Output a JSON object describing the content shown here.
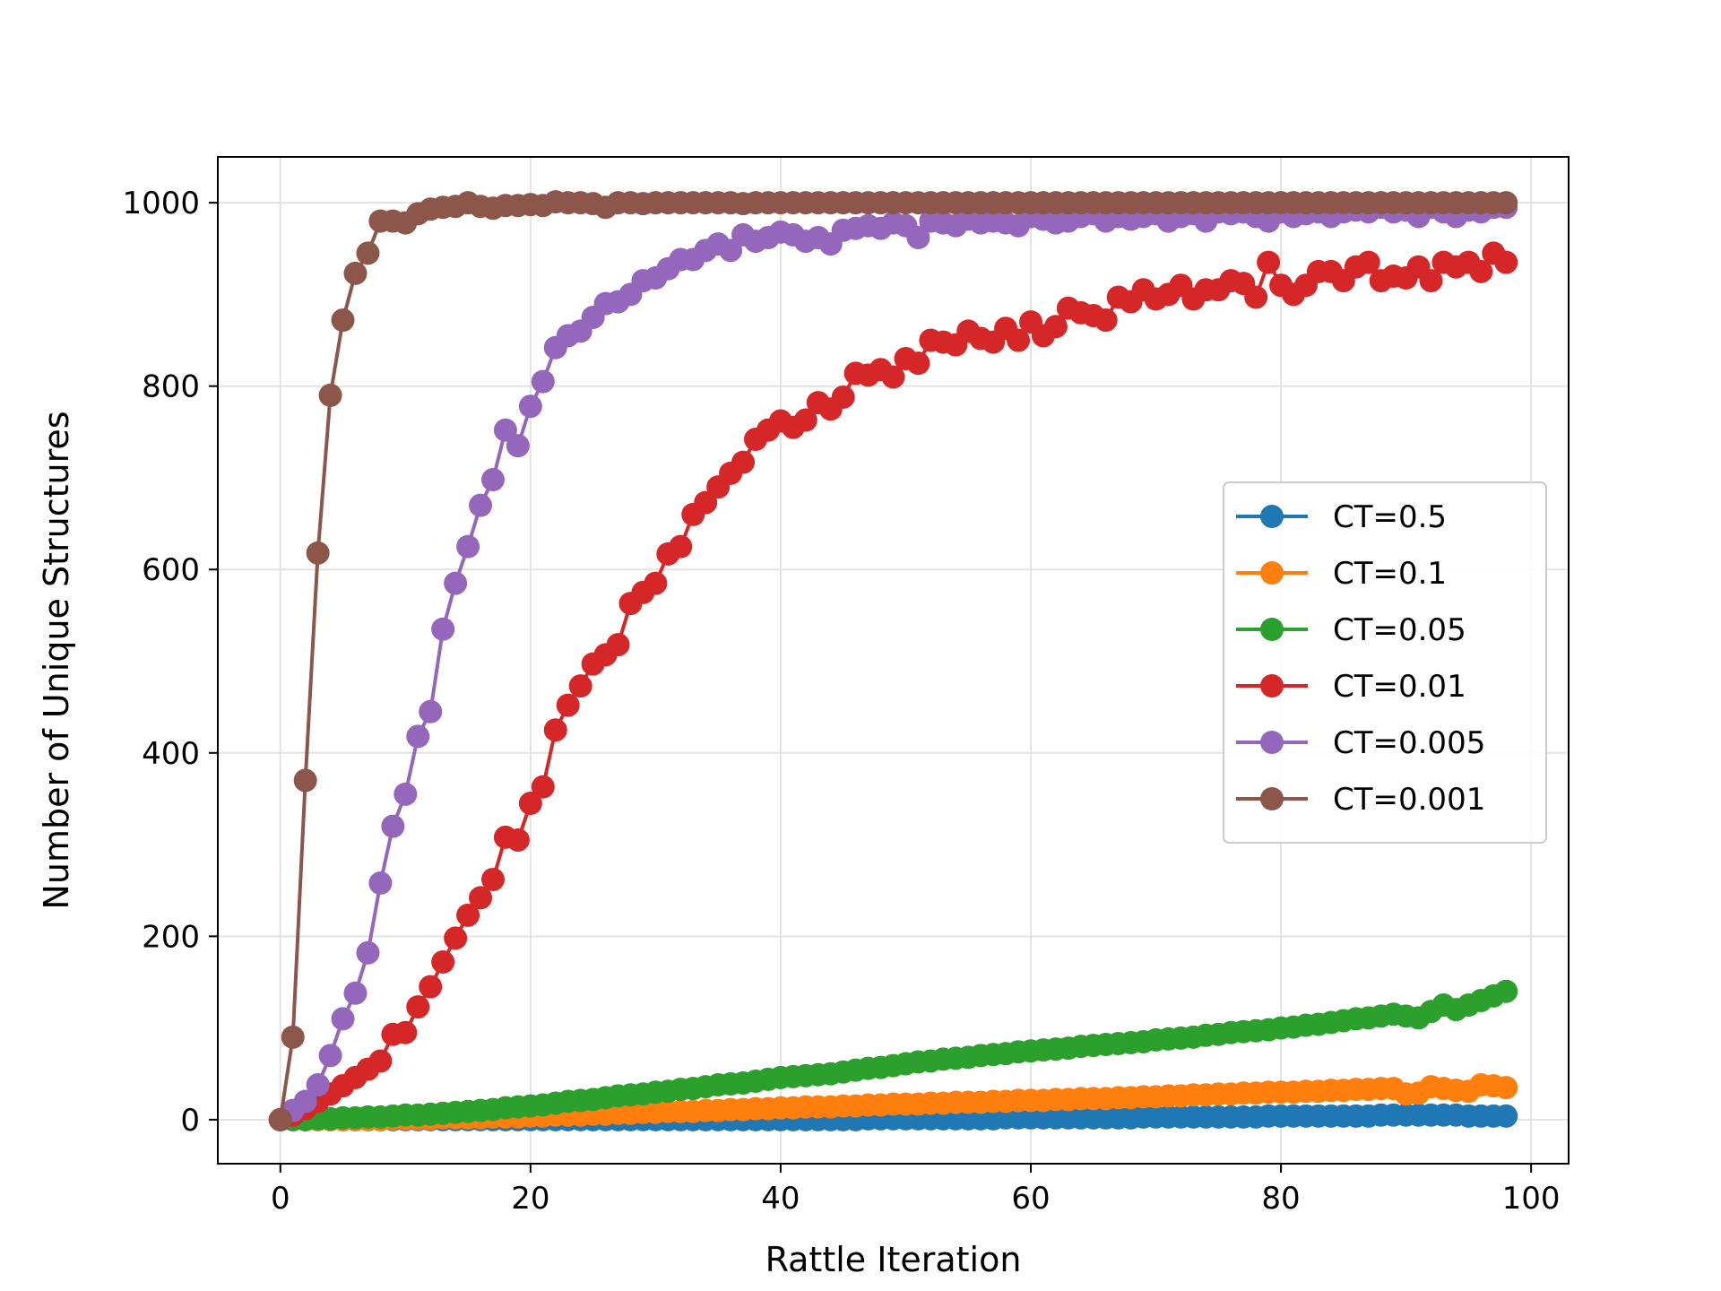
{
  "chart_data": {
    "type": "line",
    "title": "",
    "xlabel": "Rattle Iteration",
    "ylabel": "Number of Unique Structures",
    "xlim": [
      -5,
      103
    ],
    "ylim": [
      -48,
      1050
    ],
    "xticks": [
      0,
      20,
      40,
      60,
      80,
      100
    ],
    "yticks": [
      0,
      200,
      400,
      600,
      800,
      1000
    ],
    "grid": true,
    "legend_position": "center-right",
    "x": [
      0,
      1,
      2,
      3,
      4,
      5,
      6,
      7,
      8,
      9,
      10,
      11,
      12,
      13,
      14,
      15,
      16,
      17,
      18,
      19,
      20,
      21,
      22,
      23,
      24,
      25,
      26,
      27,
      28,
      29,
      30,
      31,
      32,
      33,
      34,
      35,
      36,
      37,
      38,
      39,
      40,
      41,
      42,
      43,
      44,
      45,
      46,
      47,
      48,
      49,
      50,
      51,
      52,
      53,
      54,
      55,
      56,
      57,
      58,
      59,
      60,
      61,
      62,
      63,
      64,
      65,
      66,
      67,
      68,
      69,
      70,
      71,
      72,
      73,
      74,
      75,
      76,
      77,
      78,
      79,
      80,
      81,
      82,
      83,
      84,
      85,
      86,
      87,
      88,
      89,
      90,
      91,
      92,
      93,
      94,
      95,
      96,
      97,
      98
    ],
    "series": [
      {
        "name": "CT=0.5",
        "color": "#1f77b4",
        "values": [
          0,
          0,
          0,
          0,
          0,
          0,
          0,
          0,
          0,
          0,
          0,
          0,
          0,
          0,
          0,
          0,
          0,
          0,
          0,
          0,
          0,
          0,
          0,
          0,
          0,
          0,
          0,
          0,
          0,
          0,
          0,
          0,
          0,
          0,
          0,
          0,
          0,
          0,
          0,
          0,
          0,
          0,
          0,
          0,
          0,
          0,
          0,
          1,
          1,
          1,
          1,
          1,
          1,
          1,
          1,
          1,
          1,
          1,
          2,
          2,
          2,
          2,
          2,
          2,
          2,
          2,
          2,
          2,
          2,
          3,
          3,
          3,
          3,
          3,
          3,
          3,
          3,
          3,
          3,
          4,
          4,
          4,
          4,
          4,
          4,
          4,
          4,
          4,
          5,
          5,
          5,
          5,
          5,
          5,
          5,
          4,
          4,
          4,
          4
        ]
      },
      {
        "name": "CT=0.1",
        "color": "#ff7f0e",
        "values": [
          0,
          0,
          0,
          0,
          0,
          0,
          0,
          0,
          0,
          1,
          1,
          1,
          1,
          2,
          2,
          2,
          2,
          3,
          3,
          3,
          4,
          4,
          5,
          5,
          5,
          6,
          6,
          7,
          7,
          8,
          8,
          9,
          9,
          9,
          10,
          10,
          11,
          11,
          12,
          12,
          13,
          13,
          14,
          14,
          14,
          15,
          15,
          16,
          16,
          17,
          17,
          17,
          18,
          18,
          19,
          19,
          19,
          20,
          20,
          21,
          21,
          21,
          22,
          22,
          23,
          23,
          23,
          24,
          24,
          25,
          25,
          26,
          26,
          27,
          27,
          28,
          28,
          29,
          29,
          30,
          30,
          30,
          31,
          31,
          32,
          32,
          33,
          33,
          34,
          34,
          28,
          29,
          36,
          34,
          32,
          31,
          38,
          37,
          35
        ]
      },
      {
        "name": "CT=0.05",
        "color": "#2ca02c",
        "values": [
          0,
          0,
          0,
          1,
          1,
          2,
          2,
          3,
          3,
          4,
          5,
          5,
          6,
          7,
          8,
          9,
          10,
          11,
          13,
          14,
          15,
          16,
          18,
          20,
          21,
          22,
          24,
          26,
          27,
          28,
          30,
          31,
          33,
          34,
          36,
          38,
          39,
          40,
          42,
          44,
          46,
          47,
          48,
          49,
          50,
          52,
          54,
          56,
          57,
          59,
          61,
          63,
          64,
          66,
          67,
          68,
          70,
          71,
          72,
          74,
          75,
          76,
          77,
          78,
          80,
          81,
          82,
          83,
          84,
          85,
          87,
          88,
          89,
          90,
          92,
          93,
          95,
          96,
          97,
          98,
          100,
          101,
          103,
          104,
          106,
          108,
          110,
          111,
          113,
          115,
          113,
          111,
          118,
          125,
          120,
          125,
          130,
          135,
          140
        ]
      },
      {
        "name": "CT=0.01",
        "color": "#d62728",
        "values": [
          0,
          5,
          12,
          20,
          28,
          37,
          46,
          55,
          64,
          93,
          95,
          123,
          145,
          172,
          198,
          223,
          242,
          262,
          308,
          305,
          345,
          363,
          425,
          452,
          473,
          497,
          507,
          518,
          563,
          575,
          585,
          617,
          625,
          660,
          673,
          690,
          705,
          717,
          742,
          752,
          762,
          755,
          763,
          782,
          775,
          788,
          814,
          812,
          818,
          810,
          830,
          825,
          850,
          848,
          845,
          860,
          852,
          848,
          863,
          850,
          870,
          855,
          865,
          885,
          880,
          877,
          872,
          897,
          892,
          905,
          895,
          900,
          910,
          895,
          905,
          905,
          915,
          912,
          897,
          935,
          910,
          900,
          910,
          925,
          925,
          915,
          930,
          935,
          915,
          920,
          918,
          930,
          915,
          935,
          930,
          935,
          925,
          945,
          935
        ]
      },
      {
        "name": "CT=0.005",
        "color": "#9467bd",
        "values": [
          0,
          10,
          20,
          38,
          70,
          110,
          138,
          182,
          258,
          320,
          355,
          418,
          445,
          535,
          585,
          625,
          670,
          698,
          752,
          735,
          778,
          805,
          842,
          855,
          860,
          875,
          890,
          892,
          900,
          915,
          918,
          928,
          938,
          938,
          948,
          955,
          948,
          965,
          958,
          962,
          968,
          965,
          958,
          962,
          955,
          970,
          972,
          975,
          972,
          978,
          975,
          962,
          980,
          978,
          975,
          982,
          978,
          980,
          978,
          975,
          985,
          982,
          978,
          980,
          985,
          988,
          980,
          985,
          982,
          985,
          988,
          980,
          985,
          988,
          980,
          990,
          988,
          990,
          985,
          980,
          990,
          985,
          988,
          990,
          985,
          990,
          992,
          990,
          995,
          990,
          992,
          985,
          995,
          990,
          985,
          992,
          990,
          995,
          995
        ]
      },
      {
        "name": "CT=0.001",
        "color": "#8c564b",
        "values": [
          0,
          90,
          370,
          618,
          790,
          872,
          923,
          945,
          980,
          980,
          978,
          988,
          993,
          995,
          996,
          1000,
          996,
          994,
          997,
          997,
          998,
          997,
          1001,
          1000,
          1000,
          999,
          995,
          1000,
          1000,
          999,
          1000,
          1000,
          1000,
          1000,
          1000,
          1000,
          1000,
          999,
          1000,
          1000,
          1000,
          1000,
          1000,
          1000,
          1000,
          1000,
          1000,
          1000,
          1000,
          1000,
          1000,
          1000,
          1000,
          1000,
          1000,
          1000,
          1000,
          1000,
          1000,
          1000,
          1000,
          1000,
          1000,
          1000,
          1000,
          1000,
          1000,
          1000,
          1000,
          1000,
          1000,
          1000,
          1000,
          1000,
          1000,
          1000,
          1000,
          1000,
          1000,
          1000,
          1000,
          1000,
          1000,
          1000,
          1000,
          1000,
          1000,
          1000,
          1000,
          1000,
          1000,
          1000,
          1000,
          1000,
          1000,
          1000,
          1000,
          1000,
          1000
        ]
      }
    ]
  }
}
